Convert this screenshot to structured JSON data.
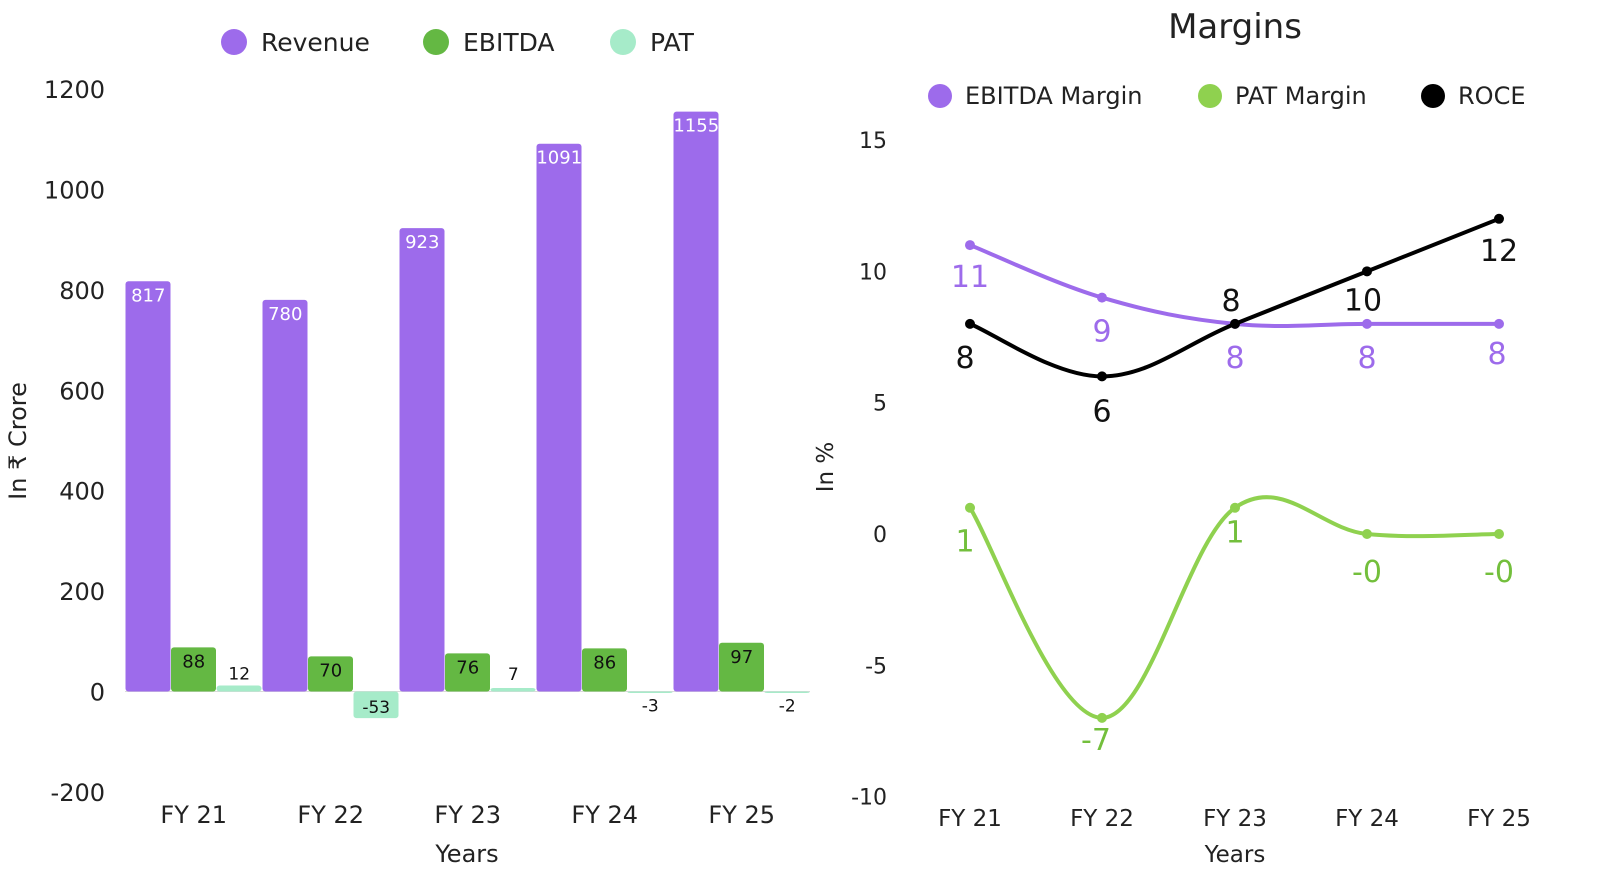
{
  "chart_data": [
    {
      "type": "bar",
      "title": "",
      "categories": [
        "FY 21",
        "FY 22",
        "FY 23",
        "FY 24",
        "FY 25"
      ],
      "series": [
        {
          "name": "Revenue",
          "values": [
            817,
            780,
            923,
            1091,
            1155
          ],
          "color": "#9d6beb"
        },
        {
          "name": "EBITDA",
          "values": [
            88,
            70,
            76,
            86,
            97
          ],
          "color": "#64b843"
        },
        {
          "name": "PAT",
          "values": [
            12,
            -53,
            7,
            -3,
            -2
          ],
          "color": "#a6ebc9"
        }
      ],
      "xlabel": "Years",
      "ylabel": "In ₹ Crore",
      "ylim": [
        -200,
        1200
      ],
      "yticks": [
        "1200",
        "1000",
        "800",
        "600",
        "400",
        "200",
        "0",
        "-200"
      ],
      "legend_position": "top",
      "grid": false
    },
    {
      "type": "line",
      "title": "Margins",
      "categories": [
        "FY 21",
        "FY 22",
        "FY 23",
        "FY 24",
        "FY 25"
      ],
      "series": [
        {
          "name": "EBITDA Margin",
          "values": [
            11,
            9,
            8,
            8,
            8
          ],
          "labels": [
            "11",
            "9",
            "8",
            "8",
            "8"
          ],
          "color": "#9d6beb"
        },
        {
          "name": "PAT Margin",
          "values": [
            1,
            -7,
            1,
            0,
            0
          ],
          "labels": [
            "1",
            "-7",
            "1",
            "-0",
            "-0"
          ],
          "color": "#8fd14f"
        },
        {
          "name": "ROCE",
          "values": [
            8,
            6,
            8,
            10,
            12
          ],
          "labels": [
            "8",
            "6",
            "8",
            "10",
            "12"
          ],
          "color": "#000000"
        }
      ],
      "xlabel": "Years",
      "ylabel": "In %",
      "ylim": [
        -10,
        15
      ],
      "yticks": [
        "15",
        "10",
        "5",
        "0",
        "-5",
        "-10"
      ],
      "legend_position": "top",
      "grid": false
    }
  ]
}
